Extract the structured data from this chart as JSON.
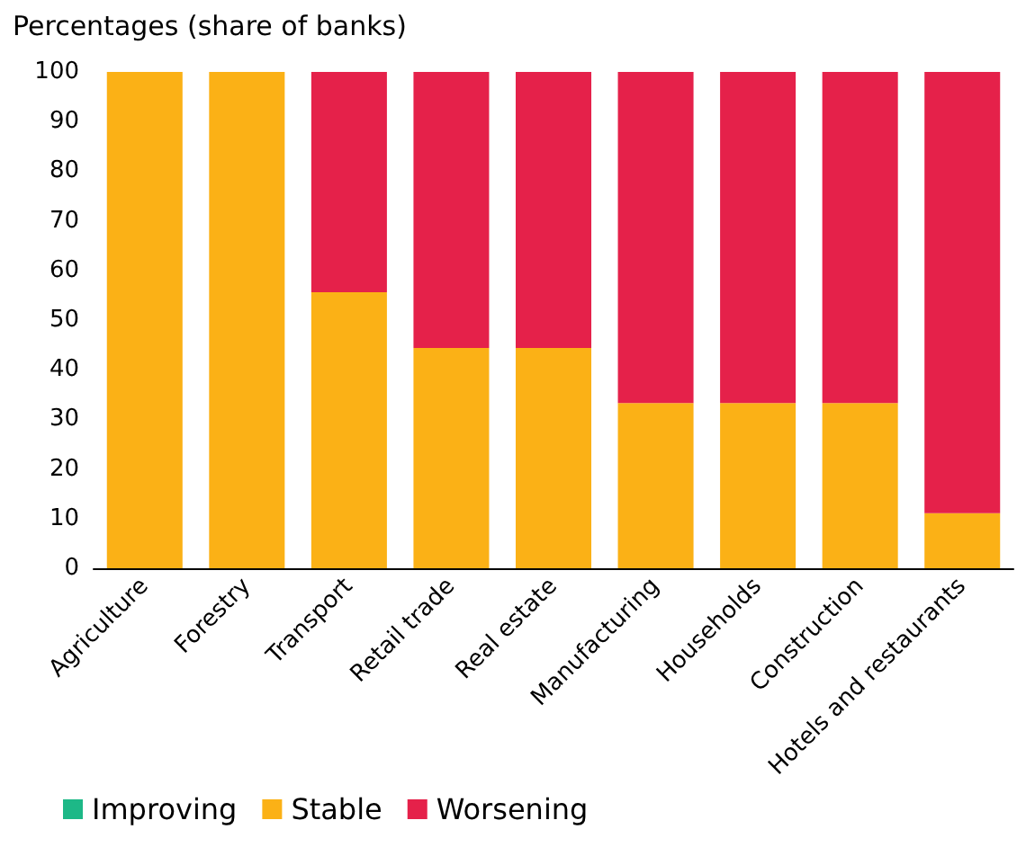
{
  "chart_data": {
    "type": "bar",
    "ylabel": "Percentages (share of banks)",
    "categories": [
      "Agriculture",
      "Forestry",
      "Transport",
      "Retail trade",
      "Real estate",
      "Manufacturing",
      "Households",
      "Construction",
      "Hotels and restaurants"
    ],
    "stacked": true,
    "series": [
      {
        "name": "Improving",
        "color": "#1db887",
        "values": [
          0,
          0,
          0,
          0,
          0,
          0,
          0,
          0,
          0
        ]
      },
      {
        "name": "Stable",
        "color": "#fbb116",
        "values": [
          100,
          100,
          55.6,
          44.4,
          44.4,
          33.3,
          33.3,
          33.3,
          11.1
        ]
      },
      {
        "name": "Worsening",
        "color": "#e5214a",
        "values": [
          0,
          0,
          44.4,
          55.6,
          55.6,
          66.7,
          66.7,
          66.7,
          88.9
        ]
      }
    ],
    "ylim": [
      0,
      100
    ],
    "yticks": [
      0,
      10,
      20,
      30,
      40,
      50,
      60,
      70,
      80,
      90,
      100
    ],
    "grid": false,
    "legend": "bottom left"
  }
}
